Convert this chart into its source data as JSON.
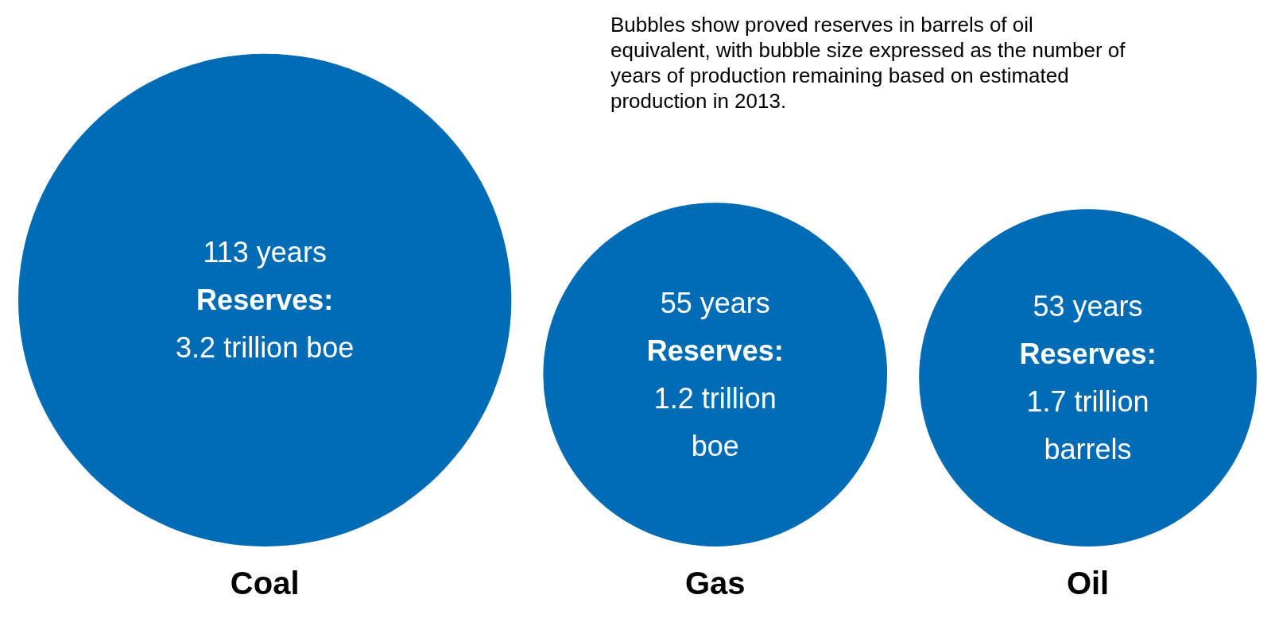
{
  "chart_data": {
    "type": "other",
    "categories": [
      "Coal",
      "Gas",
      "Oil"
    ],
    "series": [
      {
        "color": "#006cb5",
        "values": [
          113,
          55,
          53
        ],
        "value_labels": [
          "113 years",
          "55 years",
          "53 years"
        ]
      }
    ],
    "annotations": [
      "Bubbles show proved reserves in barrels of oil equivalent, with bubble size expressed as the number of years of production remaining based on estimated production in 2013.",
      "Reserves:",
      "3.2 trillion boe",
      "Reserves:",
      "1.2 trillion boe",
      "Reserves:",
      "1.7 trillion barrels"
    ]
  }
}
